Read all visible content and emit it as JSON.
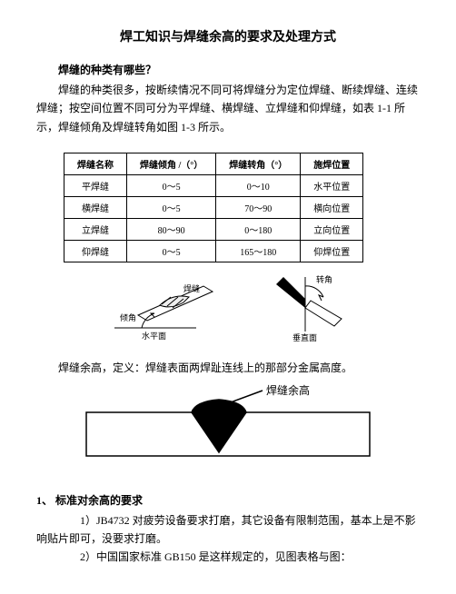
{
  "title": "焊工知识与焊缝余高的要求及处理方式",
  "q_heading": "焊缝的种类有哪些？",
  "intro": "焊缝的种类很多，按断续情况不同可将焊缝分为定位焊缝、断续焊缝、连续焊缝；按空间位置不同可分为平焊缝、横焊缝、立焊缝和仰焊缝，如表 1-1 所示，焊缝倾角及焊缝转角如图 1-3 所示。",
  "table": {
    "headers": [
      "焊缝名称",
      "焊缝倾角 /（°）",
      "焊缝转角（°）",
      "施焊位置"
    ],
    "rows": [
      [
        "平焊缝",
        "0～5",
        "0～10",
        "水平位置"
      ],
      [
        "横焊缝",
        "0～5",
        "70～90",
        "横向位置"
      ],
      [
        "立焊缝",
        "80～90",
        "0～180",
        "立向位置"
      ],
      [
        "仰焊缝",
        "0～5",
        "165～180",
        "仰焊位置"
      ]
    ]
  },
  "fig_left": {
    "label_weld": "焊缝",
    "label_angle": "倾角",
    "label_plane": "水平面"
  },
  "fig_right": {
    "label_angle": "转角",
    "label_vertical": "垂直面"
  },
  "def_line": "焊缝余高，定义：焊缝表面两焊趾连线上的那部分金属高度。",
  "rein_label": "焊缝余高",
  "sec1_heading": "1、 标准对余高的要求",
  "item1": "1）JB4732 对疲劳设备要求打磨，其它设备有限制范围，基本上是不影响贴片即可，没要求打磨。",
  "item2": "2）中国国家标准 GB150 是这样规定的，见图表格与图："
}
